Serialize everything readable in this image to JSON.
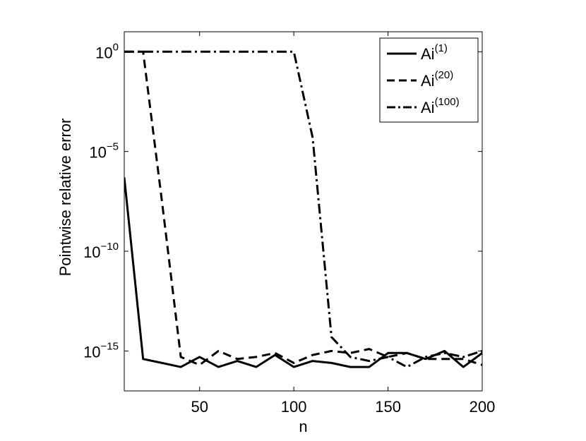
{
  "chart_data": {
    "type": "line",
    "xlabel": "n",
    "ylabel": "Pointwise relative error",
    "xlim": [
      10,
      200
    ],
    "ylim_exponent": [
      -17,
      1
    ],
    "yscale": "log",
    "grid": false,
    "legend_position": "top-right",
    "x_ticks": [
      "50",
      "100",
      "150",
      "200"
    ],
    "y_ticks": [
      {
        "base": "10",
        "exp": "0"
      },
      {
        "base": "10",
        "exp": "−5"
      },
      {
        "base": "10",
        "exp": "−10"
      },
      {
        "base": "10",
        "exp": "−15"
      }
    ],
    "x": [
      10,
      20,
      30,
      40,
      50,
      60,
      70,
      80,
      90,
      100,
      110,
      120,
      130,
      140,
      150,
      160,
      170,
      180,
      190,
      200
    ],
    "series": [
      {
        "base": "Ai",
        "sup": "(1)",
        "style": "solid",
        "log10_values": [
          -6.3,
          -15.4,
          -15.6,
          -15.8,
          -15.3,
          -15.8,
          -15.5,
          -15.8,
          -15.2,
          -15.8,
          -15.5,
          -15.6,
          -15.8,
          -15.8,
          -15.1,
          -15.1,
          -15.4,
          -15.0,
          -15.8,
          -15.1
        ]
      },
      {
        "base": "Ai",
        "sup": "(20)",
        "style": "dashed",
        "log10_values": [
          0,
          0,
          -7.5,
          -15.3,
          -15.7,
          -15.0,
          -15.4,
          -15.3,
          -15.1,
          -15.6,
          -15.2,
          -15.0,
          -15.1,
          -14.9,
          -15.3,
          -15.1,
          -15.4,
          -15.4,
          -15.4,
          -15.7
        ]
      },
      {
        "base": "Ai",
        "sup": "(100)",
        "style": "dashdot",
        "log10_values": [
          0,
          0,
          0,
          0,
          0,
          0,
          0,
          0,
          0,
          0,
          -4.3,
          -14.3,
          -15.3,
          -15.5,
          -15.3,
          -15.8,
          -15.3,
          -15.1,
          -15.3,
          -15.0
        ]
      }
    ]
  }
}
